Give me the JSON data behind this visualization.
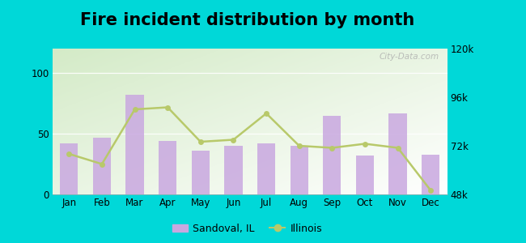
{
  "months": [
    "Jan",
    "Feb",
    "Mar",
    "Apr",
    "May",
    "Jun",
    "Jul",
    "Aug",
    "Sep",
    "Oct",
    "Nov",
    "Dec"
  ],
  "sandoval_values": [
    42,
    47,
    82,
    44,
    36,
    40,
    42,
    40,
    65,
    32,
    67,
    33
  ],
  "illinois_values": [
    68000,
    63000,
    90000,
    91000,
    74000,
    75000,
    88000,
    72000,
    71000,
    73000,
    71000,
    50000
  ],
  "bar_color": "#c9a8e0",
  "line_color": "#b8c96a",
  "title": "Fire incident distribution by month",
  "title_fontsize": 15,
  "left_ylim": [
    0,
    120
  ],
  "left_yticks": [
    0,
    50,
    100
  ],
  "right_ylim": [
    48000,
    120000
  ],
  "right_yticks": [
    48000,
    72000,
    96000,
    120000
  ],
  "right_yticklabels": [
    "48k",
    "72k",
    "96k",
    "120k"
  ],
  "bg_outer": "#00d8d8",
  "watermark": "City-Data.com",
  "legend_sandoval": "Sandoval, IL",
  "legend_illinois": "Illinois"
}
